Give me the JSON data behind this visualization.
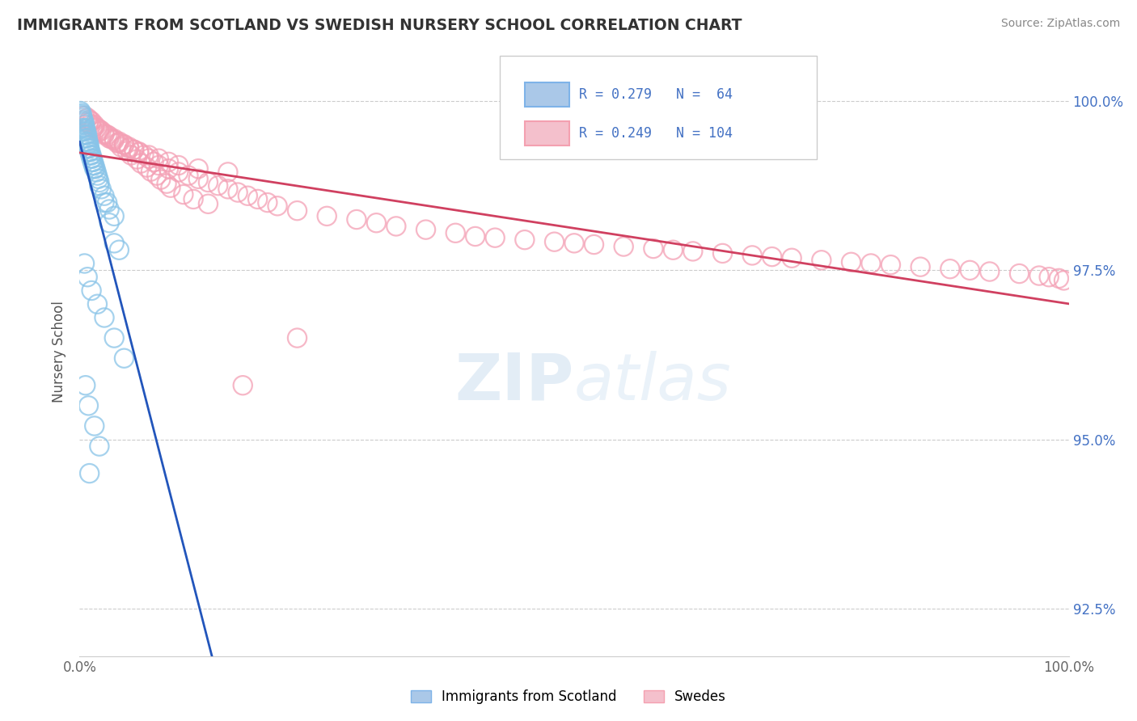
{
  "title": "IMMIGRANTS FROM SCOTLAND VS SWEDISH NURSERY SCHOOL CORRELATION CHART",
  "source": "Source: ZipAtlas.com",
  "ylabel": "Nursery School",
  "R_blue": 0.279,
  "N_blue": 64,
  "R_pink": 0.249,
  "N_pink": 104,
  "blue_color": "#89C4E8",
  "pink_color": "#F4A0B5",
  "blue_line_color": "#2255BB",
  "pink_line_color": "#D04060",
  "legend_blue_label": "Immigrants from Scotland",
  "legend_pink_label": "Swedes",
  "watermark": "ZIPatlas",
  "blue_scatter_x": [
    0.1,
    0.15,
    0.2,
    0.25,
    0.3,
    0.35,
    0.4,
    0.45,
    0.5,
    0.55,
    0.6,
    0.65,
    0.7,
    0.75,
    0.8,
    0.85,
    0.9,
    0.95,
    1.0,
    1.1,
    1.2,
    1.3,
    1.4,
    1.5,
    1.6,
    1.7,
    1.8,
    1.9,
    2.0,
    2.2,
    2.5,
    2.8,
    3.0,
    3.5,
    0.3,
    0.4,
    0.5,
    0.6,
    0.7,
    0.8,
    0.9,
    1.0,
    1.1,
    1.2,
    1.3,
    1.4,
    1.5,
    2.0,
    2.5,
    3.0,
    3.5,
    4.0,
    0.5,
    0.8,
    1.2,
    1.8,
    2.5,
    3.5,
    4.5,
    0.6,
    0.9,
    1.5,
    2.0,
    1.0
  ],
  "blue_scatter_y": [
    99.85,
    99.8,
    99.82,
    99.78,
    99.75,
    99.72,
    99.7,
    99.68,
    99.65,
    99.6,
    99.58,
    99.55,
    99.5,
    99.5,
    99.45,
    99.4,
    99.38,
    99.35,
    99.3,
    99.25,
    99.2,
    99.15,
    99.1,
    99.05,
    99.0,
    98.95,
    98.9,
    98.85,
    98.8,
    98.7,
    98.6,
    98.5,
    98.4,
    98.3,
    99.6,
    99.55,
    99.5,
    99.45,
    99.4,
    99.35,
    99.3,
    99.25,
    99.2,
    99.15,
    99.1,
    99.05,
    99.0,
    98.75,
    98.5,
    98.2,
    97.9,
    97.8,
    97.6,
    97.4,
    97.2,
    97.0,
    96.8,
    96.5,
    96.2,
    95.8,
    95.5,
    95.2,
    94.9,
    94.5
  ],
  "pink_scatter_x": [
    0.5,
    0.8,
    1.0,
    1.2,
    1.5,
    1.8,
    2.0,
    2.5,
    3.0,
    3.5,
    4.0,
    4.5,
    5.0,
    5.5,
    6.0,
    7.0,
    8.0,
    9.0,
    10.0,
    12.0,
    15.0,
    2.0,
    2.5,
    3.0,
    3.5,
    4.0,
    4.5,
    5.0,
    5.5,
    6.0,
    6.5,
    7.0,
    7.5,
    8.0,
    9.0,
    10.0,
    11.0,
    12.0,
    13.0,
    14.0,
    15.0,
    16.0,
    17.0,
    18.0,
    19.0,
    20.0,
    22.0,
    25.0,
    28.0,
    30.0,
    32.0,
    35.0,
    38.0,
    40.0,
    42.0,
    45.0,
    48.0,
    50.0,
    52.0,
    55.0,
    58.0,
    60.0,
    62.0,
    65.0,
    68.0,
    70.0,
    72.0,
    75.0,
    78.0,
    80.0,
    82.0,
    85.0,
    88.0,
    90.0,
    92.0,
    95.0,
    97.0,
    98.0,
    99.0,
    99.5,
    1.5,
    2.2,
    2.8,
    3.2,
    3.8,
    4.2,
    4.8,
    5.2,
    5.8,
    6.2,
    6.8,
    7.2,
    7.8,
    8.2,
    8.8,
    9.2,
    10.5,
    11.5,
    13.0,
    0.9,
    1.1,
    1.3,
    16.5,
    22.0
  ],
  "pink_scatter_y": [
    99.78,
    99.75,
    99.72,
    99.7,
    99.65,
    99.6,
    99.55,
    99.5,
    99.45,
    99.42,
    99.38,
    99.35,
    99.3,
    99.28,
    99.25,
    99.2,
    99.15,
    99.1,
    99.05,
    99.0,
    98.95,
    99.58,
    99.52,
    99.48,
    99.44,
    99.4,
    99.36,
    99.32,
    99.28,
    99.24,
    99.2,
    99.15,
    99.1,
    99.05,
    99.0,
    98.95,
    98.9,
    98.85,
    98.8,
    98.75,
    98.7,
    98.65,
    98.6,
    98.55,
    98.5,
    98.45,
    98.38,
    98.3,
    98.25,
    98.2,
    98.15,
    98.1,
    98.05,
    98.0,
    97.98,
    97.95,
    97.92,
    97.9,
    97.88,
    97.85,
    97.82,
    97.8,
    97.78,
    97.75,
    97.72,
    97.7,
    97.68,
    97.65,
    97.62,
    97.6,
    97.58,
    97.55,
    97.52,
    97.5,
    97.48,
    97.45,
    97.42,
    97.4,
    97.38,
    97.35,
    99.62,
    99.56,
    99.5,
    99.44,
    99.38,
    99.32,
    99.26,
    99.2,
    99.14,
    99.08,
    99.02,
    98.96,
    98.9,
    98.84,
    98.78,
    98.72,
    98.62,
    98.55,
    98.48,
    99.68,
    99.65,
    99.6,
    95.8,
    96.5
  ]
}
